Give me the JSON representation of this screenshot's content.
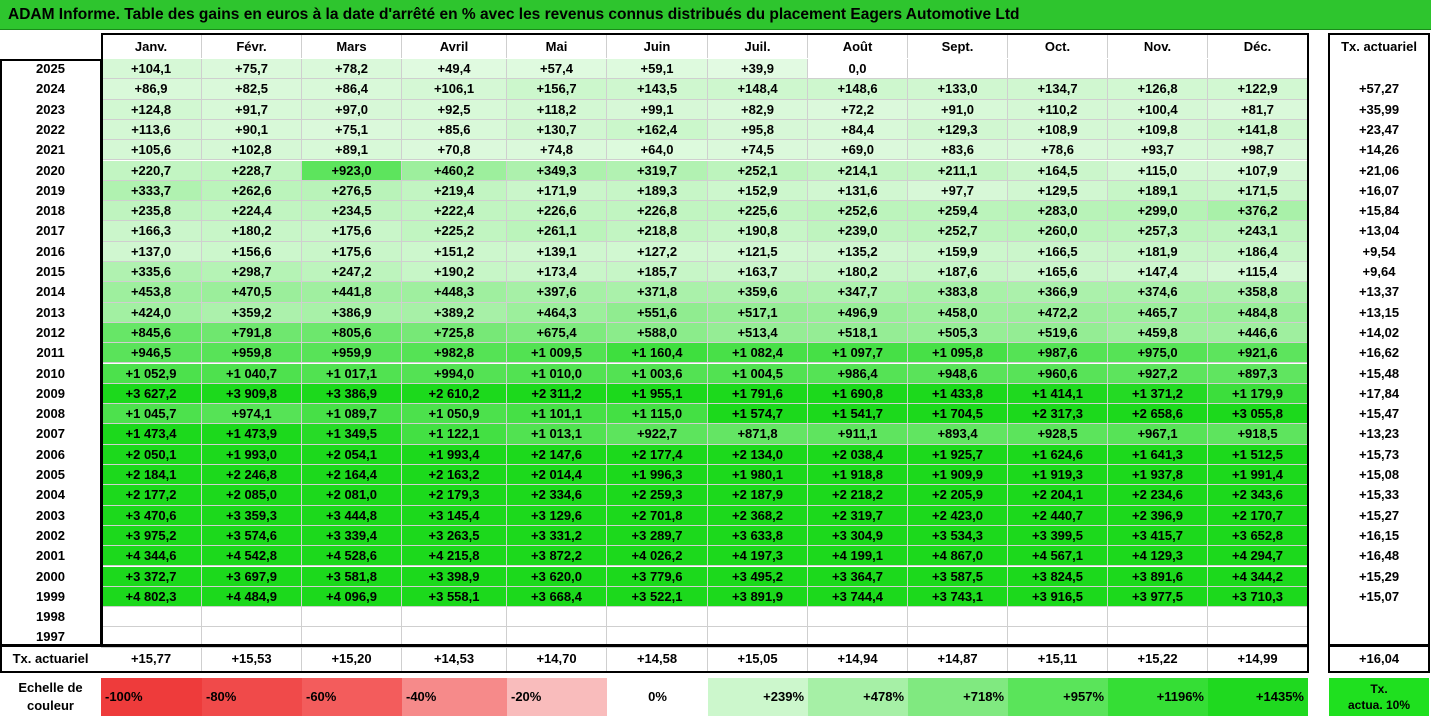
{
  "title": "ADAM Informe. Table des gains en euros à la date d'arrêté en % avec les revenus connus distribués du placement Eagers Automotive Ltd",
  "months": [
    "Janv.",
    "Févr.",
    "Mars",
    "Avril",
    "Mai",
    "Juin",
    "Juil.",
    "Août",
    "Sept.",
    "Oct.",
    "Nov.",
    "Déc."
  ],
  "rate_header": "Tx. actuariel",
  "rows": [
    {
      "year": "2025",
      "values": [
        "+104,1",
        "+75,7",
        "+78,2",
        "+49,4",
        "+57,4",
        "+59,1",
        "+39,9",
        "0,0",
        "",
        "",
        "",
        ""
      ],
      "rate": ""
    },
    {
      "year": "2024",
      "values": [
        "+86,9",
        "+82,5",
        "+86,4",
        "+106,1",
        "+156,7",
        "+143,5",
        "+148,4",
        "+148,6",
        "+133,0",
        "+134,7",
        "+126,8",
        "+122,9"
      ],
      "rate": "+57,27"
    },
    {
      "year": "2023",
      "values": [
        "+124,8",
        "+91,7",
        "+97,0",
        "+92,5",
        "+118,2",
        "+99,1",
        "+82,9",
        "+72,2",
        "+91,0",
        "+110,2",
        "+100,4",
        "+81,7"
      ],
      "rate": "+35,99"
    },
    {
      "year": "2022",
      "values": [
        "+113,6",
        "+90,1",
        "+75,1",
        "+85,6",
        "+130,7",
        "+162,4",
        "+95,8",
        "+84,4",
        "+129,3",
        "+108,9",
        "+109,8",
        "+141,8"
      ],
      "rate": "+23,47"
    },
    {
      "year": "2021",
      "values": [
        "+105,6",
        "+102,8",
        "+89,1",
        "+70,8",
        "+74,8",
        "+64,0",
        "+74,5",
        "+69,0",
        "+83,6",
        "+78,6",
        "+93,7",
        "+98,7"
      ],
      "rate": "+14,26"
    },
    {
      "year": "2020",
      "values": [
        "+220,7",
        "+228,7",
        "+923,0",
        "+460,2",
        "+349,3",
        "+319,7",
        "+252,1",
        "+214,1",
        "+211,1",
        "+164,5",
        "+115,0",
        "+107,9"
      ],
      "rate": "+21,06"
    },
    {
      "year": "2019",
      "values": [
        "+333,7",
        "+262,6",
        "+276,5",
        "+219,4",
        "+171,9",
        "+189,3",
        "+152,9",
        "+131,6",
        "+97,7",
        "+129,5",
        "+189,1",
        "+171,5"
      ],
      "rate": "+16,07"
    },
    {
      "year": "2018",
      "values": [
        "+235,8",
        "+224,4",
        "+234,5",
        "+222,4",
        "+226,6",
        "+226,8",
        "+225,6",
        "+252,6",
        "+259,4",
        "+283,0",
        "+299,0",
        "+376,2"
      ],
      "rate": "+15,84"
    },
    {
      "year": "2017",
      "values": [
        "+166,3",
        "+180,2",
        "+175,6",
        "+225,2",
        "+261,1",
        "+218,8",
        "+190,8",
        "+239,0",
        "+252,7",
        "+260,0",
        "+257,3",
        "+243,1"
      ],
      "rate": "+13,04"
    },
    {
      "year": "2016",
      "values": [
        "+137,0",
        "+156,6",
        "+175,6",
        "+151,2",
        "+139,1",
        "+127,2",
        "+121,5",
        "+135,2",
        "+159,9",
        "+166,5",
        "+181,9",
        "+186,4"
      ],
      "rate": "+9,54"
    },
    {
      "year": "2015",
      "values": [
        "+335,6",
        "+298,7",
        "+247,2",
        "+190,2",
        "+173,4",
        "+185,7",
        "+163,7",
        "+180,2",
        "+187,6",
        "+165,6",
        "+147,4",
        "+115,4"
      ],
      "rate": "+9,64"
    },
    {
      "year": "2014",
      "values": [
        "+453,8",
        "+470,5",
        "+441,8",
        "+448,3",
        "+397,6",
        "+371,8",
        "+359,6",
        "+347,7",
        "+383,8",
        "+366,9",
        "+374,6",
        "+358,8"
      ],
      "rate": "+13,37"
    },
    {
      "year": "2013",
      "values": [
        "+424,0",
        "+359,2",
        "+386,9",
        "+389,2",
        "+464,3",
        "+551,6",
        "+517,1",
        "+496,9",
        "+458,0",
        "+472,2",
        "+465,7",
        "+484,8"
      ],
      "rate": "+13,15"
    },
    {
      "year": "2012",
      "values": [
        "+845,6",
        "+791,8",
        "+805,6",
        "+725,8",
        "+675,4",
        "+588,0",
        "+513,4",
        "+518,1",
        "+505,3",
        "+519,6",
        "+459,8",
        "+446,6"
      ],
      "rate": "+14,02"
    },
    {
      "year": "2011",
      "values": [
        "+946,5",
        "+959,8",
        "+959,9",
        "+982,8",
        "+1 009,5",
        "+1 160,4",
        "+1 082,4",
        "+1 097,7",
        "+1 095,8",
        "+987,6",
        "+975,0",
        "+921,6"
      ],
      "rate": "+16,62"
    },
    {
      "year": "2010",
      "values": [
        "+1 052,9",
        "+1 040,7",
        "+1 017,1",
        "+994,0",
        "+1 010,0",
        "+1 003,6",
        "+1 004,5",
        "+986,4",
        "+948,6",
        "+960,6",
        "+927,2",
        "+897,3"
      ],
      "rate": "+15,48"
    },
    {
      "year": "2009",
      "values": [
        "+3 627,2",
        "+3 909,8",
        "+3 386,9",
        "+2 610,2",
        "+2 311,2",
        "+1 955,1",
        "+1 791,6",
        "+1 690,8",
        "+1 433,8",
        "+1 414,1",
        "+1 371,2",
        "+1 179,9"
      ],
      "rate": "+17,84"
    },
    {
      "year": "2008",
      "values": [
        "+1 045,7",
        "+974,1",
        "+1 089,7",
        "+1 050,9",
        "+1 101,1",
        "+1 115,0",
        "+1 574,7",
        "+1 541,7",
        "+1 704,5",
        "+2 317,3",
        "+2 658,6",
        "+3 055,8"
      ],
      "rate": "+15,47"
    },
    {
      "year": "2007",
      "values": [
        "+1 473,4",
        "+1 473,9",
        "+1 349,5",
        "+1 122,1",
        "+1 013,1",
        "+922,7",
        "+871,8",
        "+911,1",
        "+893,4",
        "+928,5",
        "+967,1",
        "+918,5"
      ],
      "rate": "+13,23"
    },
    {
      "year": "2006",
      "values": [
        "+2 050,1",
        "+1 993,0",
        "+2 054,1",
        "+1 993,4",
        "+2 147,6",
        "+2 177,4",
        "+2 134,0",
        "+2 038,4",
        "+1 925,7",
        "+1 624,6",
        "+1 641,3",
        "+1 512,5"
      ],
      "rate": "+15,73"
    },
    {
      "year": "2005",
      "values": [
        "+2 184,1",
        "+2 246,8",
        "+2 164,4",
        "+2 163,2",
        "+2 014,4",
        "+1 996,3",
        "+1 980,1",
        "+1 918,8",
        "+1 909,9",
        "+1 919,3",
        "+1 937,8",
        "+1 991,4"
      ],
      "rate": "+15,08"
    },
    {
      "year": "2004",
      "values": [
        "+2 177,2",
        "+2 085,0",
        "+2 081,0",
        "+2 179,3",
        "+2 334,6",
        "+2 259,3",
        "+2 187,9",
        "+2 218,2",
        "+2 205,9",
        "+2 204,1",
        "+2 234,6",
        "+2 343,6"
      ],
      "rate": "+15,33"
    },
    {
      "year": "2003",
      "values": [
        "+3 470,6",
        "+3 359,3",
        "+3 444,8",
        "+3 145,4",
        "+3 129,6",
        "+2 701,8",
        "+2 368,2",
        "+2 319,7",
        "+2 423,0",
        "+2 440,7",
        "+2 396,9",
        "+2 170,7"
      ],
      "rate": "+15,27"
    },
    {
      "year": "2002",
      "values": [
        "+3 975,2",
        "+3 574,6",
        "+3 339,4",
        "+3 263,5",
        "+3 331,2",
        "+3 289,7",
        "+3 633,8",
        "+3 304,9",
        "+3 534,3",
        "+3 399,5",
        "+3 415,7",
        "+3 652,8"
      ],
      "rate": "+16,15"
    },
    {
      "year": "2001",
      "values": [
        "+4 344,6",
        "+4 542,8",
        "+4 528,6",
        "+4 215,8",
        "+3 872,2",
        "+4 026,2",
        "+4 197,3",
        "+4 199,1",
        "+4 867,0",
        "+4 567,1",
        "+4 129,3",
        "+4 294,7"
      ],
      "rate": "+16,48"
    },
    {
      "year": "2000",
      "values": [
        "+3 372,7",
        "+3 697,9",
        "+3 581,8",
        "+3 398,9",
        "+3 620,0",
        "+3 779,6",
        "+3 495,2",
        "+3 364,7",
        "+3 587,5",
        "+3 824,5",
        "+3 891,6",
        "+4 344,2"
      ],
      "rate": "+15,29"
    },
    {
      "year": "1999",
      "values": [
        "+4 802,3",
        "+4 484,9",
        "+4 096,9",
        "+3 558,1",
        "+3 668,4",
        "+3 522,1",
        "+3 891,9",
        "+3 744,4",
        "+3 743,1",
        "+3 916,5",
        "+3 977,5",
        "+3 710,3"
      ],
      "rate": "+15,07"
    },
    {
      "year": "1998",
      "values": [
        "",
        "",
        "",
        "",
        "",
        "",
        "",
        "",
        "",
        "",
        "",
        ""
      ],
      "rate": ""
    },
    {
      "year": "1997",
      "values": [
        "",
        "",
        "",
        "",
        "",
        "",
        "",
        "",
        "",
        "",
        "",
        ""
      ],
      "rate": ""
    }
  ],
  "average_row": {
    "label": "Tx. actuariel",
    "values": [
      "+15,77",
      "+15,53",
      "+15,20",
      "+14,53",
      "+14,70",
      "+14,58",
      "+15,05",
      "+14,94",
      "+14,87",
      "+15,11",
      "+15,22",
      "+14,99"
    ],
    "rate": "+16,04"
  },
  "legend": {
    "label_line1": "Echelle de",
    "label_line2": "couleur",
    "steps": [
      {
        "label": "-100%",
        "color": "#ee3b3b"
      },
      {
        "label": "-80%",
        "color": "#f04a4a"
      },
      {
        "label": "-60%",
        "color": "#f35c5c"
      },
      {
        "label": "-40%",
        "color": "#f68a8a"
      },
      {
        "label": "-20%",
        "color": "#f9bcbc"
      },
      {
        "label": "0%",
        "color": "#ffffff"
      },
      {
        "label": "+239%",
        "color": "#ccf7cc"
      },
      {
        "label": "+478%",
        "color": "#a6f0a6"
      },
      {
        "label": "+718%",
        "color": "#80e980"
      },
      {
        "label": "+957%",
        "color": "#5ae45a"
      },
      {
        "label": "+1196%",
        "color": "#35de35"
      },
      {
        "label": "+1435%",
        "color": "#1fd91f"
      }
    ],
    "tx_line1": "Tx.",
    "tx_line2": "actua. 10%"
  },
  "colors": {
    "title_bg": "#2ec52e",
    "accent_cell": "#5ae45a",
    "legend_tx_bg": "#1fe01f"
  }
}
